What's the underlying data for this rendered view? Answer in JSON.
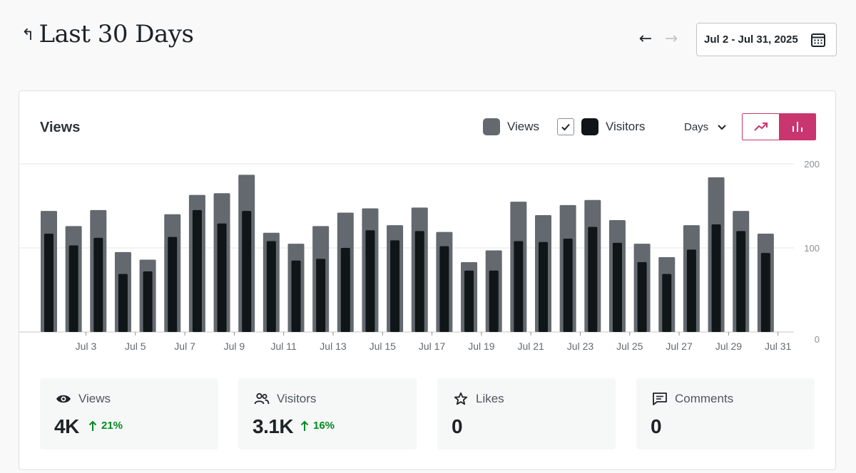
{
  "header": {
    "title_icon": "↰",
    "title": "Last 30 Days",
    "prev_label": "←",
    "next_label": "→",
    "date_range": "Jul 2 - Jul 31, 2025"
  },
  "card": {
    "title": "Views",
    "legend": [
      {
        "name": "Views",
        "color": "#646970"
      },
      {
        "name": "Visitors",
        "color": "#101517",
        "checked": true
      }
    ],
    "interval": "Days"
  },
  "chart_data": {
    "type": "bar",
    "title": "Views",
    "categories": [
      "Jul 2",
      "Jul 3",
      "Jul 4",
      "Jul 5",
      "Jul 6",
      "Jul 7",
      "Jul 8",
      "Jul 9",
      "Jul 10",
      "Jul 11",
      "Jul 12",
      "Jul 13",
      "Jul 14",
      "Jul 15",
      "Jul 16",
      "Jul 17",
      "Jul 18",
      "Jul 19",
      "Jul 20",
      "Jul 21",
      "Jul 22",
      "Jul 23",
      "Jul 24",
      "Jul 25",
      "Jul 26",
      "Jul 27",
      "Jul 28",
      "Jul 29",
      "Jul 30",
      "Jul 31"
    ],
    "tick_labels": [
      "Jul 3",
      "Jul 5",
      "Jul 7",
      "Jul 9",
      "Jul 11",
      "Jul 13",
      "Jul 15",
      "Jul 17",
      "Jul 19",
      "Jul 21",
      "Jul 23",
      "Jul 25",
      "Jul 27",
      "Jul 29",
      "Jul 31"
    ],
    "series": [
      {
        "name": "Views",
        "color": "#646970",
        "values": [
          144,
          126,
          145,
          95,
          86,
          140,
          163,
          165,
          187,
          118,
          105,
          126,
          142,
          147,
          127,
          148,
          119,
          83,
          97,
          155,
          139,
          151,
          157,
          133,
          105,
          89,
          127,
          184,
          144,
          117
        ]
      },
      {
        "name": "Visitors",
        "color": "#101517",
        "values": [
          117,
          103,
          112,
          69,
          72,
          113,
          145,
          129,
          144,
          108,
          85,
          87,
          100,
          121,
          109,
          120,
          102,
          73,
          73,
          108,
          107,
          111,
          125,
          106,
          83,
          69,
          98,
          128,
          120,
          94
        ]
      }
    ],
    "ylim": [
      0,
      200
    ],
    "yticks": [
      0,
      100,
      200
    ],
    "grid": true
  },
  "stats": [
    {
      "label": "Views",
      "value": "4K",
      "delta": "21%",
      "active": true
    },
    {
      "label": "Visitors",
      "value": "3.1K",
      "delta": "16%",
      "active": false
    },
    {
      "label": "Likes",
      "value": "0",
      "delta": "",
      "active": false
    },
    {
      "label": "Comments",
      "value": "0",
      "delta": "",
      "active": false
    }
  ]
}
